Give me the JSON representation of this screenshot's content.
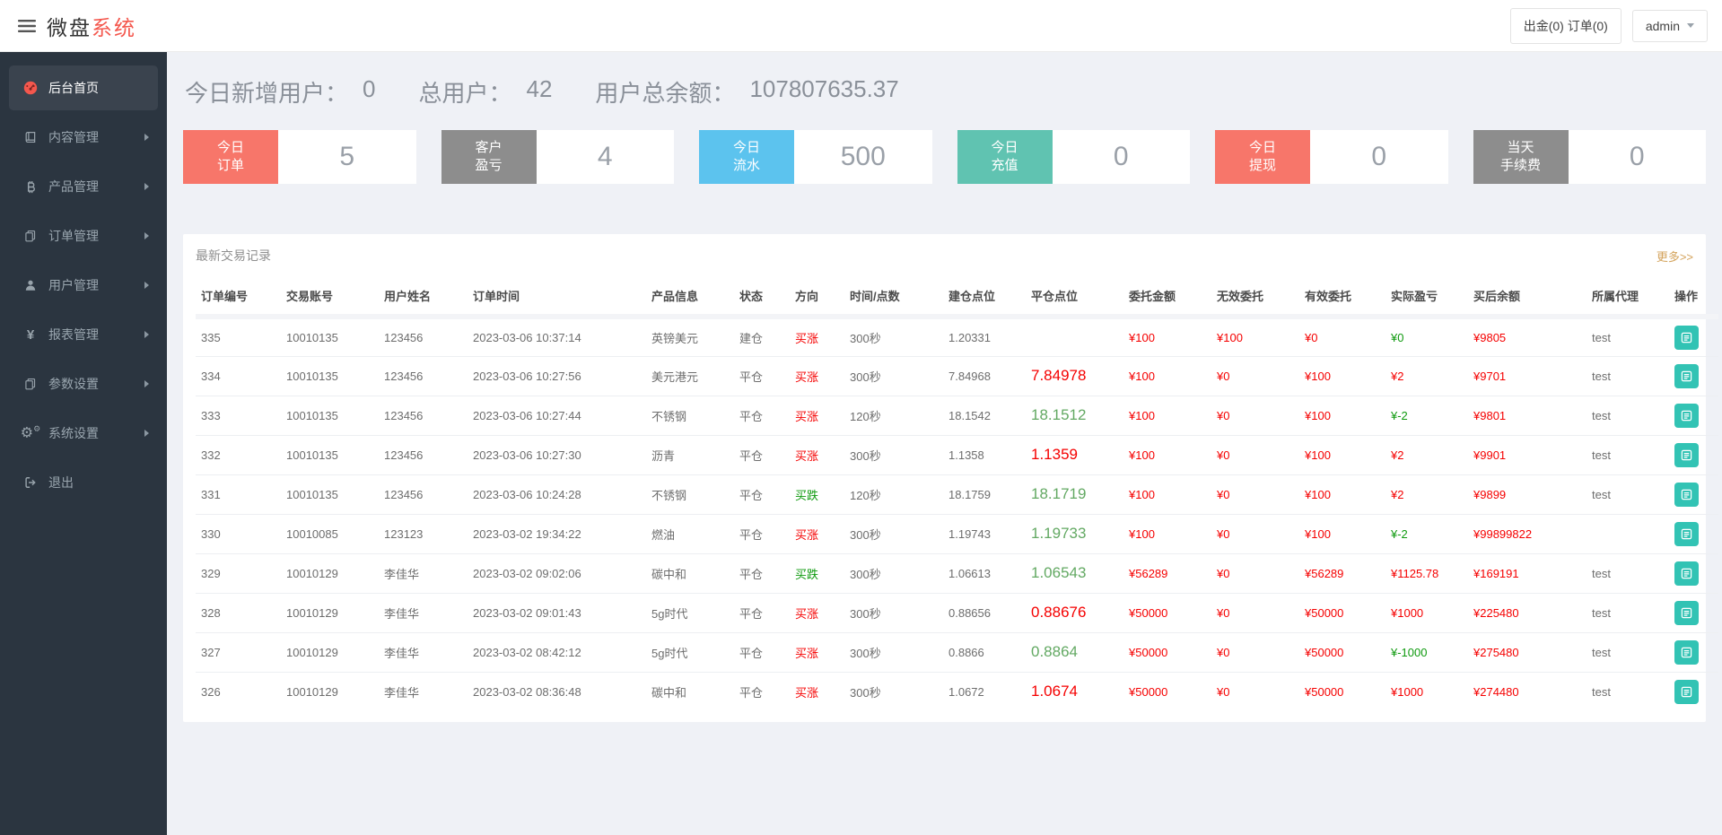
{
  "topbar": {
    "logo_primary": "微盘",
    "logo_accent": "系统",
    "withdraw_orders_label": "出金(0) 订单(0)",
    "username": "admin"
  },
  "sidebar": {
    "items": [
      {
        "label": "后台首页",
        "icon": "dashboard-icon",
        "active": true,
        "expandable": false
      },
      {
        "label": "内容管理",
        "icon": "book-icon",
        "active": false,
        "expandable": true
      },
      {
        "label": "产品管理",
        "icon": "bitcoin-icon",
        "active": false,
        "expandable": true
      },
      {
        "label": "订单管理",
        "icon": "copy-icon",
        "active": false,
        "expandable": true
      },
      {
        "label": "用户管理",
        "icon": "user-icon",
        "active": false,
        "expandable": true
      },
      {
        "label": "报表管理",
        "icon": "yen-icon",
        "active": false,
        "expandable": true
      },
      {
        "label": "参数设置",
        "icon": "copy-icon",
        "active": false,
        "expandable": true
      },
      {
        "label": "系统设置",
        "icon": "gears-icon",
        "active": false,
        "expandable": true
      },
      {
        "label": "退出",
        "icon": "logout-icon",
        "active": false,
        "expandable": false
      }
    ]
  },
  "stats": [
    {
      "label": "今日新增用户：",
      "value": "0"
    },
    {
      "label": "总用户：",
      "value": "42"
    },
    {
      "label": "用户总余额：",
      "value": "107807635.37"
    }
  ],
  "cards": [
    {
      "line1": "今日",
      "line2": "订单",
      "value": "5",
      "color": "#f7766a"
    },
    {
      "line1": "客户",
      "line2": "盈亏",
      "value": "4",
      "color": "#8d8d8d"
    },
    {
      "line1": "今日",
      "line2": "流水",
      "value": "500",
      "color": "#5cc3ee"
    },
    {
      "line1": "今日",
      "line2": "充值",
      "value": "0",
      "color": "#60c3b1"
    },
    {
      "line1": "今日",
      "line2": "提现",
      "value": "0",
      "color": "#f7766a"
    },
    {
      "line1": "当天",
      "line2": "手续费",
      "value": "0",
      "color": "#8d8d8d"
    }
  ],
  "panel": {
    "title": "最新交易记录",
    "more_link": "更多>>"
  },
  "table": {
    "columns": [
      "订单编号",
      "交易账号",
      "用户姓名",
      "订单时间",
      "产品信息",
      "状态",
      "方向",
      "时间/点数",
      "建仓点位",
      "平仓点位",
      "委托金额",
      "无效委托",
      "有效委托",
      "实际盈亏",
      "买后余额",
      "所属代理",
      "操作"
    ],
    "rows": [
      {
        "id": "335",
        "account": "10010135",
        "name": "123456",
        "time": "2023-03-06 10:37:14",
        "product": "英镑美元",
        "status": "建仓",
        "direction": "买涨",
        "direction_trend": "up",
        "duration": "300秒",
        "open_point": "1.20331",
        "close_point": "",
        "close_trend": "",
        "amount": "¥100",
        "invalid": "¥100",
        "valid": "¥0",
        "profit": "¥0",
        "profit_trend": "down",
        "balance": "¥9805",
        "agent": "test"
      },
      {
        "id": "334",
        "account": "10010135",
        "name": "123456",
        "time": "2023-03-06 10:27:56",
        "product": "美元港元",
        "status": "平仓",
        "direction": "买涨",
        "direction_trend": "up",
        "duration": "300秒",
        "open_point": "7.84968",
        "close_point": "7.84978",
        "close_trend": "up",
        "amount": "¥100",
        "invalid": "¥0",
        "valid": "¥100",
        "profit": "¥2",
        "profit_trend": "up",
        "balance": "¥9701",
        "agent": "test"
      },
      {
        "id": "333",
        "account": "10010135",
        "name": "123456",
        "time": "2023-03-06 10:27:44",
        "product": "不锈钢",
        "status": "平仓",
        "direction": "买涨",
        "direction_trend": "up",
        "duration": "120秒",
        "open_point": "18.1542",
        "close_point": "18.1512",
        "close_trend": "down",
        "amount": "¥100",
        "invalid": "¥0",
        "valid": "¥100",
        "profit": "¥-2",
        "profit_trend": "down",
        "balance": "¥9801",
        "agent": "test"
      },
      {
        "id": "332",
        "account": "10010135",
        "name": "123456",
        "time": "2023-03-06 10:27:30",
        "product": "沥青",
        "status": "平仓",
        "direction": "买涨",
        "direction_trend": "up",
        "duration": "300秒",
        "open_point": "1.1358",
        "close_point": "1.1359",
        "close_trend": "up",
        "amount": "¥100",
        "invalid": "¥0",
        "valid": "¥100",
        "profit": "¥2",
        "profit_trend": "up",
        "balance": "¥9901",
        "agent": "test"
      },
      {
        "id": "331",
        "account": "10010135",
        "name": "123456",
        "time": "2023-03-06 10:24:28",
        "product": "不锈钢",
        "status": "平仓",
        "direction": "买跌",
        "direction_trend": "down",
        "duration": "120秒",
        "open_point": "18.1759",
        "close_point": "18.1719",
        "close_trend": "down",
        "amount": "¥100",
        "invalid": "¥0",
        "valid": "¥100",
        "profit": "¥2",
        "profit_trend": "up",
        "balance": "¥9899",
        "agent": "test"
      },
      {
        "id": "330",
        "account": "10010085",
        "name": "123123",
        "time": "2023-03-02 19:34:22",
        "product": "燃油",
        "status": "平仓",
        "direction": "买涨",
        "direction_trend": "up",
        "duration": "300秒",
        "open_point": "1.19743",
        "close_point": "1.19733",
        "close_trend": "down",
        "amount": "¥100",
        "invalid": "¥0",
        "valid": "¥100",
        "profit": "¥-2",
        "profit_trend": "down",
        "balance": "¥99899822",
        "agent": ""
      },
      {
        "id": "329",
        "account": "10010129",
        "name": "李佳华",
        "time": "2023-03-02 09:02:06",
        "product": "碳中和",
        "status": "平仓",
        "direction": "买跌",
        "direction_trend": "down",
        "duration": "300秒",
        "open_point": "1.06613",
        "close_point": "1.06543",
        "close_trend": "down",
        "amount": "¥56289",
        "invalid": "¥0",
        "valid": "¥56289",
        "profit": "¥1125.78",
        "profit_trend": "up",
        "balance": "¥169191",
        "agent": "test"
      },
      {
        "id": "328",
        "account": "10010129",
        "name": "李佳华",
        "time": "2023-03-02 09:01:43",
        "product": "5g时代",
        "status": "平仓",
        "direction": "买涨",
        "direction_trend": "up",
        "duration": "300秒",
        "open_point": "0.88656",
        "close_point": "0.88676",
        "close_trend": "up",
        "amount": "¥50000",
        "invalid": "¥0",
        "valid": "¥50000",
        "profit": "¥1000",
        "profit_trend": "up",
        "balance": "¥225480",
        "agent": "test"
      },
      {
        "id": "327",
        "account": "10010129",
        "name": "李佳华",
        "time": "2023-03-02 08:42:12",
        "product": "5g时代",
        "status": "平仓",
        "direction": "买涨",
        "direction_trend": "up",
        "duration": "300秒",
        "open_point": "0.8866",
        "close_point": "0.8864",
        "close_trend": "down",
        "amount": "¥50000",
        "invalid": "¥0",
        "valid": "¥50000",
        "profit": "¥-1000",
        "profit_trend": "down",
        "balance": "¥275480",
        "agent": "test"
      },
      {
        "id": "326",
        "account": "10010129",
        "name": "李佳华",
        "time": "2023-03-02 08:36:48",
        "product": "碳中和",
        "status": "平仓",
        "direction": "买涨",
        "direction_trend": "up",
        "duration": "300秒",
        "open_point": "1.0672",
        "close_point": "1.0674",
        "close_trend": "up",
        "amount": "¥50000",
        "invalid": "¥0",
        "valid": "¥50000",
        "profit": "¥1000",
        "profit_trend": "up",
        "balance": "¥274480",
        "agent": "test"
      }
    ]
  },
  "colors": {
    "accent_red": "#f4574d",
    "up_red": "#f50000",
    "down_green": "#0f9a0f",
    "close_green": "#63a963",
    "action_teal": "#32c3b4",
    "more_link": "#d4a35c",
    "sidebar_bg": "#2b3540",
    "content_bg": "#eff1f6"
  }
}
